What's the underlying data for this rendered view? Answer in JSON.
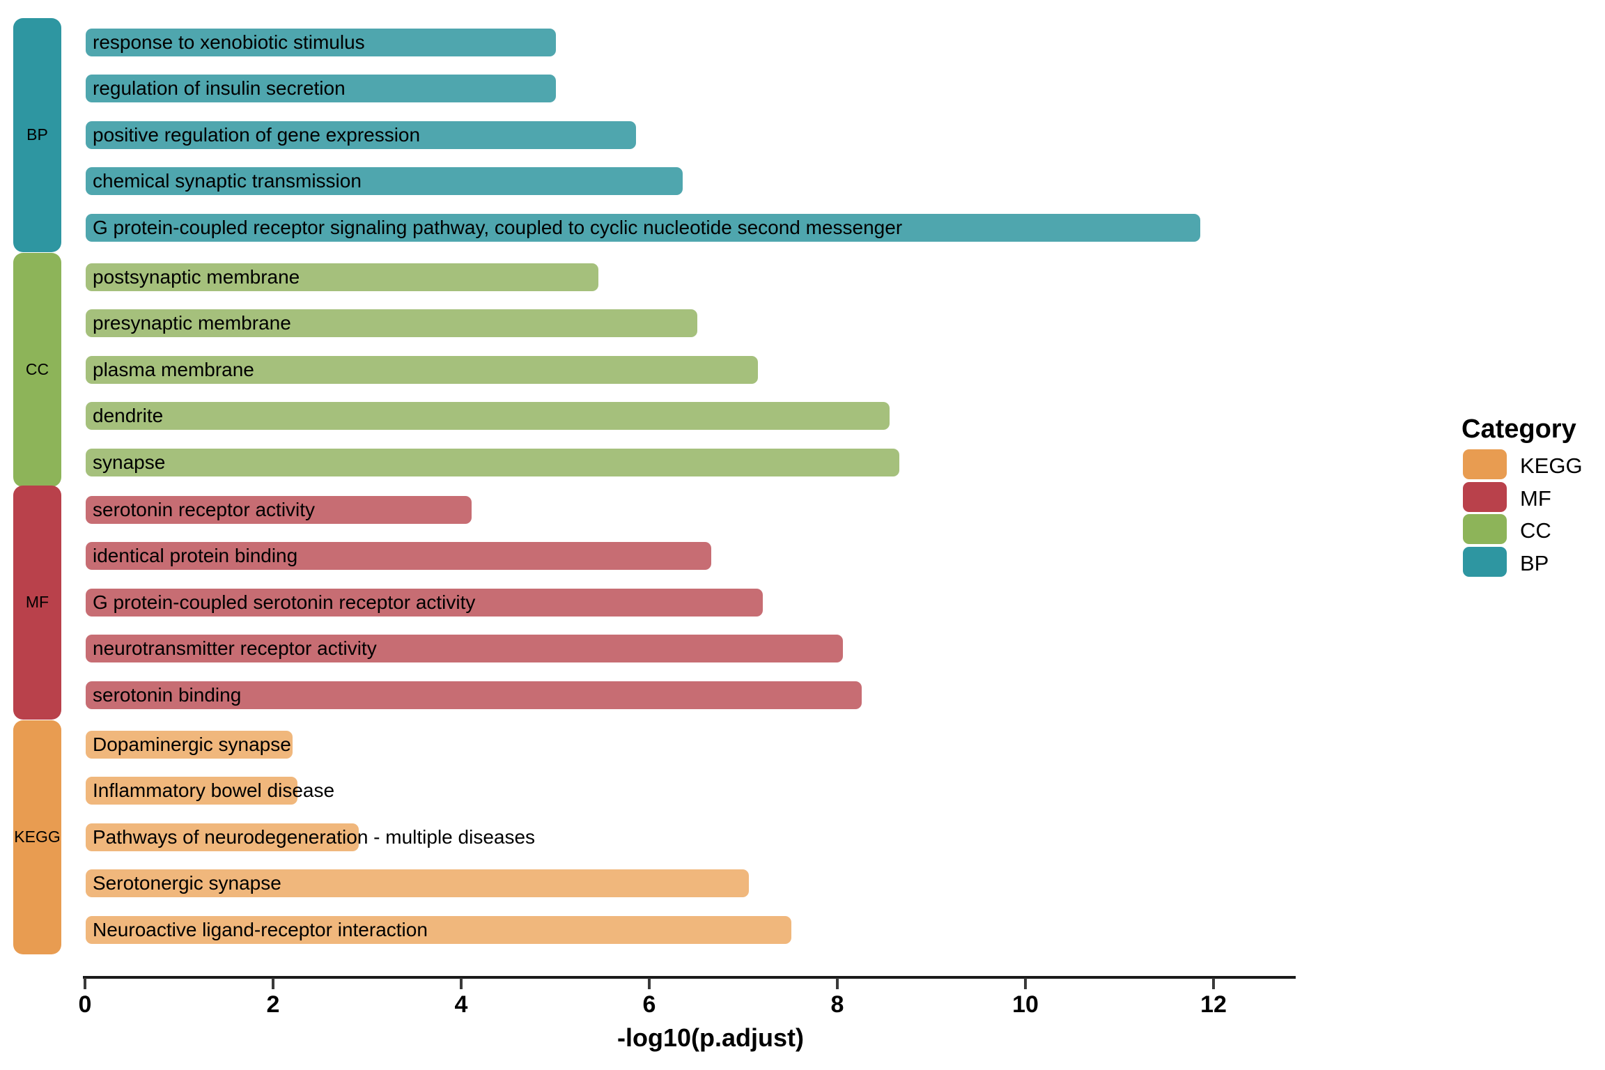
{
  "chart_data": {
    "type": "bar",
    "orientation": "horizontal",
    "xlabel": "-log10(p.adjust)",
    "xlim": [
      0,
      12.9
    ],
    "xticks": [
      0,
      2,
      4,
      6,
      8,
      10,
      12
    ],
    "grid": false,
    "legend": {
      "title": "Category",
      "position": "right",
      "entries": [
        {
          "label": "KEGG",
          "color": "#E89C51"
        },
        {
          "label": "MF",
          "color": "#B9414B"
        },
        {
          "label": "CC",
          "color": "#8DB459"
        },
        {
          "label": "BP",
          "color": "#2E96A1"
        }
      ]
    },
    "sections": [
      {
        "category": "BP",
        "strip_color": "#2E96A1",
        "bar_color": "#4FA6AE",
        "items": [
          {
            "label": "response to xenobiotic stimulus",
            "value": 5.0
          },
          {
            "label": "regulation of insulin secretion",
            "value": 5.0
          },
          {
            "label": "positive regulation of gene expression",
            "value": 5.85
          },
          {
            "label": "chemical synaptic transmission",
            "value": 6.35
          },
          {
            "label": "G protein-coupled receptor signaling pathway, coupled to cyclic nucleotide second messenger",
            "value": 11.85
          }
        ]
      },
      {
        "category": "CC",
        "strip_color": "#8DB459",
        "bar_color": "#A5C07C",
        "items": [
          {
            "label": "postsynaptic membrane",
            "value": 5.45
          },
          {
            "label": "presynaptic membrane",
            "value": 6.5
          },
          {
            "label": "plasma membrane",
            "value": 7.15
          },
          {
            "label": "dendrite",
            "value": 8.55
          },
          {
            "label": "synapse",
            "value": 8.65
          }
        ]
      },
      {
        "category": "MF",
        "strip_color": "#B9414B",
        "bar_color": "#C76D73",
        "items": [
          {
            "label": "serotonin receptor activity",
            "value": 4.1
          },
          {
            "label": "identical protein binding",
            "value": 6.65
          },
          {
            "label": "G protein-coupled serotonin receptor activity",
            "value": 7.2
          },
          {
            "label": "neurotransmitter receptor activity",
            "value": 8.05
          },
          {
            "label": "serotonin binding",
            "value": 8.25
          }
        ]
      },
      {
        "category": "KEGG",
        "strip_color": "#E89C51",
        "bar_color": "#F0B77C",
        "items": [
          {
            "label": "Dopaminergic synapse",
            "value": 2.2
          },
          {
            "label": "Inflammatory bowel disease",
            "value": 2.25
          },
          {
            "label": "Pathways of neurodegeneration - multiple diseases",
            "value": 2.9
          },
          {
            "label": "Serotonergic synapse",
            "value": 7.05
          },
          {
            "label": "Neuroactive ligand-receptor interaction",
            "value": 7.5
          }
        ]
      }
    ]
  }
}
